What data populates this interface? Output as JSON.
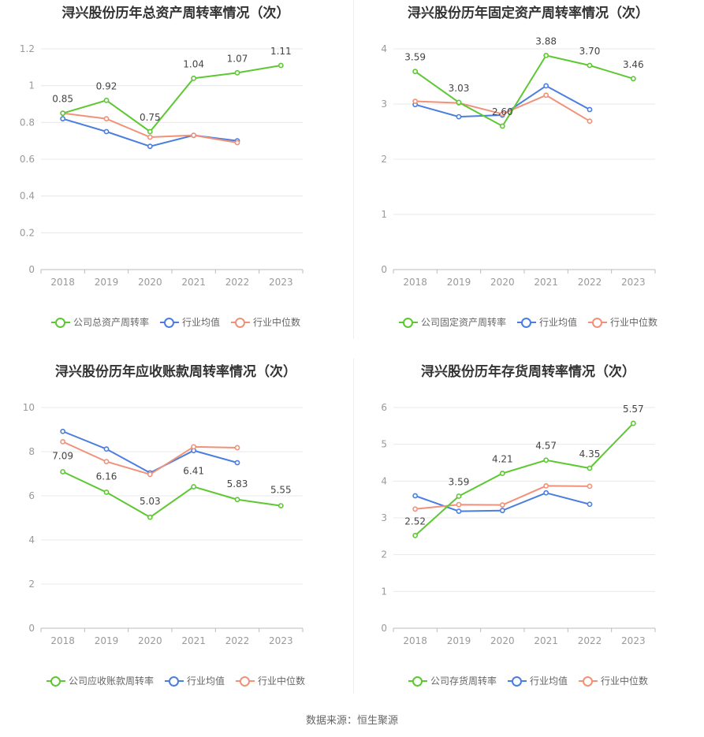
{
  "colors": {
    "company": "#5dc832",
    "avg": "#4a7ee0",
    "median": "#f0927a",
    "grid": "#e8e8e8",
    "axis": "#999999"
  },
  "footer": "数据来源：恒生聚源",
  "chart_data": [
    {
      "type": "line",
      "title": "浔兴股份历年总资产周转率情况（次）",
      "categories": [
        "2018",
        "2019",
        "2020",
        "2021",
        "2022",
        "2023"
      ],
      "ylim": [
        0,
        1.2
      ],
      "yticks": [
        "0",
        "0.2",
        "0.4",
        "0.6",
        "0.8",
        "1",
        "1.2"
      ],
      "series": [
        {
          "name": "公司总资产周转率",
          "key": "company",
          "values": [
            0.85,
            0.92,
            0.75,
            1.04,
            1.07,
            1.11
          ],
          "labels": [
            "0.85",
            "0.92",
            "0.75",
            "1.04",
            "1.07",
            "1.11"
          ]
        },
        {
          "name": "行业均值",
          "key": "avg",
          "values": [
            0.82,
            0.75,
            0.67,
            0.73,
            0.7,
            null
          ]
        },
        {
          "name": "行业中位数",
          "key": "median",
          "values": [
            0.85,
            0.82,
            0.72,
            0.73,
            0.69,
            null
          ]
        }
      ]
    },
    {
      "type": "line",
      "title": "浔兴股份历年固定资产周转率情况（次）",
      "categories": [
        "2018",
        "2019",
        "2020",
        "2021",
        "2022",
        "2023"
      ],
      "ylim": [
        0,
        4
      ],
      "yticks": [
        "0",
        "1",
        "2",
        "3",
        "4"
      ],
      "series": [
        {
          "name": "公司固定资产周转率",
          "key": "company",
          "values": [
            3.59,
            3.03,
            2.6,
            3.88,
            3.7,
            3.46
          ],
          "labels": [
            "3.59",
            "3.03",
            "2.60",
            "3.88",
            "3.70",
            "3.46"
          ]
        },
        {
          "name": "行业均值",
          "key": "avg",
          "values": [
            2.99,
            2.77,
            2.8,
            3.33,
            2.9,
            null
          ]
        },
        {
          "name": "行业中位数",
          "key": "median",
          "values": [
            3.05,
            3.02,
            2.82,
            3.16,
            2.69,
            null
          ]
        }
      ]
    },
    {
      "type": "line",
      "title": "浔兴股份历年应收账款周转率情况（次）",
      "categories": [
        "2018",
        "2019",
        "2020",
        "2021",
        "2022",
        "2023"
      ],
      "ylim": [
        0,
        10
      ],
      "yticks": [
        "0",
        "2",
        "4",
        "6",
        "8",
        "10"
      ],
      "series": [
        {
          "name": "公司应收账款周转率",
          "key": "company",
          "values": [
            7.09,
            6.16,
            5.03,
            6.41,
            5.83,
            5.55
          ],
          "labels": [
            "7.09",
            "6.16",
            "5.03",
            "6.41",
            "5.83",
            "5.55"
          ]
        },
        {
          "name": "行业均值",
          "key": "avg",
          "values": [
            8.92,
            8.12,
            7.04,
            8.05,
            7.5,
            null
          ]
        },
        {
          "name": "行业中位数",
          "key": "median",
          "values": [
            8.45,
            7.55,
            6.97,
            8.22,
            8.18,
            null
          ]
        }
      ]
    },
    {
      "type": "line",
      "title": "浔兴股份历年存货周转率情况（次）",
      "categories": [
        "2018",
        "2019",
        "2020",
        "2021",
        "2022",
        "2023"
      ],
      "ylim": [
        0,
        6
      ],
      "yticks": [
        "0",
        "1",
        "2",
        "3",
        "4",
        "5",
        "6"
      ],
      "series": [
        {
          "name": "公司存货周转率",
          "key": "company",
          "values": [
            2.52,
            3.59,
            4.21,
            4.57,
            4.35,
            5.57
          ],
          "labels": [
            "2.52",
            "3.59",
            "4.21",
            "4.57",
            "4.35",
            "5.57"
          ]
        },
        {
          "name": "行业均值",
          "key": "avg",
          "values": [
            3.6,
            3.18,
            3.2,
            3.68,
            3.37,
            null
          ]
        },
        {
          "name": "行业中位数",
          "key": "median",
          "values": [
            3.24,
            3.36,
            3.35,
            3.87,
            3.86,
            null
          ]
        }
      ]
    }
  ]
}
